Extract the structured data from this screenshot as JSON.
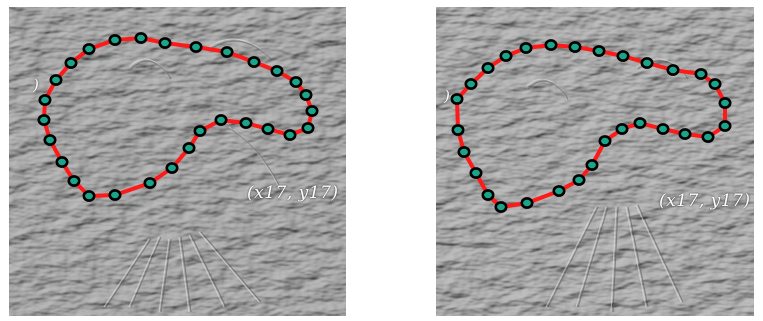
{
  "figure": {
    "panels": [
      {
        "id": "left",
        "annotation": "(x17, y17)",
        "edge_mark": ")"
      },
      {
        "id": "right",
        "annotation": "(x17, y17)",
        "edge_mark": ")"
      }
    ]
  },
  "colors": {
    "contour": "#ff1a1a",
    "point_fill": "#1aa58a",
    "point_stroke": "#000000",
    "background": "#9a9a9a"
  }
}
